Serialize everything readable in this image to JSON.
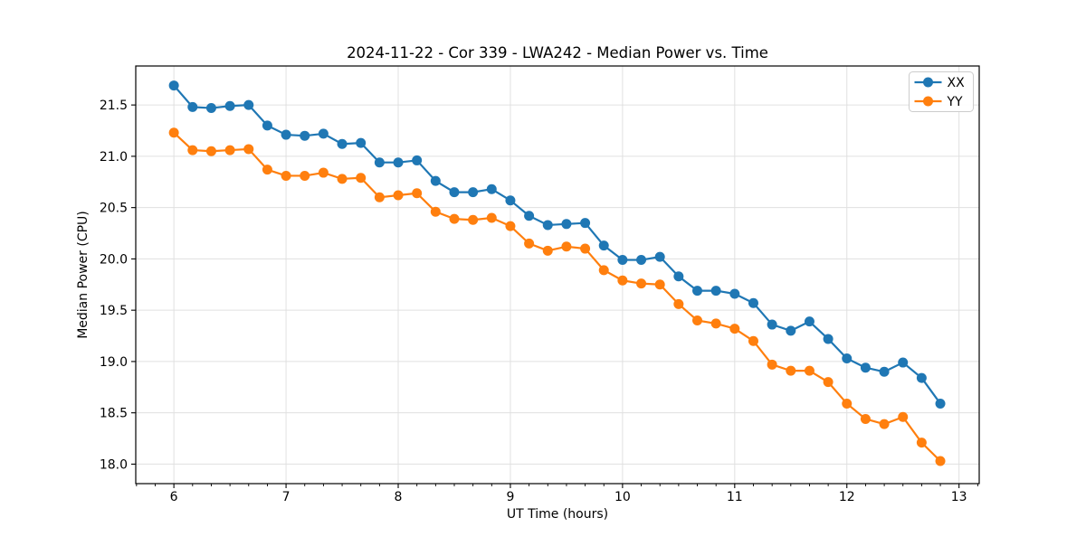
{
  "chart_data": {
    "type": "line",
    "title": "2024-11-22 - Cor 339 - LWA242 - Median Power vs. Time",
    "xlabel": "UT Time (hours)",
    "ylabel": "Median Power (CPU)",
    "xlim": [
      5.66,
      13.18
    ],
    "ylim": [
      17.81,
      21.88
    ],
    "xticks": [
      6,
      7,
      8,
      9,
      10,
      11,
      12,
      13
    ],
    "yticks": [
      18.0,
      18.5,
      19.0,
      19.5,
      20.0,
      20.5,
      21.0,
      21.5
    ],
    "minor_xtick_interval": 0.16667,
    "grid": true,
    "grid_color": "#e0e0e0",
    "legend_position": "upper right",
    "x": [
      6.0,
      6.1667,
      6.3333,
      6.5,
      6.6667,
      6.8333,
      7.0,
      7.1667,
      7.3333,
      7.5,
      7.6667,
      7.8333,
      8.0,
      8.1667,
      8.3333,
      8.5,
      8.6667,
      8.8333,
      9.0,
      9.1667,
      9.3333,
      9.5,
      9.6667,
      9.8333,
      10.0,
      10.1667,
      10.3333,
      10.5,
      10.6667,
      10.8333,
      11.0,
      11.1667,
      11.3333,
      11.5,
      11.6667,
      11.8333,
      12.0,
      12.1667,
      12.3333,
      12.5,
      12.6667,
      12.8333
    ],
    "series": [
      {
        "name": "XX",
        "color": "#1f77b4",
        "values": [
          21.69,
          21.48,
          21.47,
          21.49,
          21.5,
          21.3,
          21.21,
          21.2,
          21.22,
          21.12,
          21.13,
          20.94,
          20.94,
          20.96,
          20.76,
          20.65,
          20.65,
          20.68,
          20.57,
          20.42,
          20.33,
          20.34,
          20.35,
          20.13,
          19.99,
          19.99,
          20.02,
          19.83,
          19.69,
          19.69,
          19.66,
          19.57,
          19.36,
          19.3,
          19.39,
          19.22,
          19.03,
          18.94,
          18.9,
          18.99,
          18.84,
          18.59
        ]
      },
      {
        "name": "YY",
        "color": "#ff7f0e",
        "values": [
          21.23,
          21.06,
          21.05,
          21.06,
          21.07,
          20.87,
          20.81,
          20.81,
          20.84,
          20.78,
          20.79,
          20.6,
          20.62,
          20.64,
          20.46,
          20.39,
          20.38,
          20.4,
          20.32,
          20.15,
          20.08,
          20.12,
          20.1,
          19.89,
          19.79,
          19.76,
          19.75,
          19.56,
          19.4,
          19.37,
          19.32,
          19.2,
          18.97,
          18.91,
          18.91,
          18.8,
          18.59,
          18.44,
          18.39,
          18.46,
          18.21,
          18.03
        ]
      }
    ]
  }
}
